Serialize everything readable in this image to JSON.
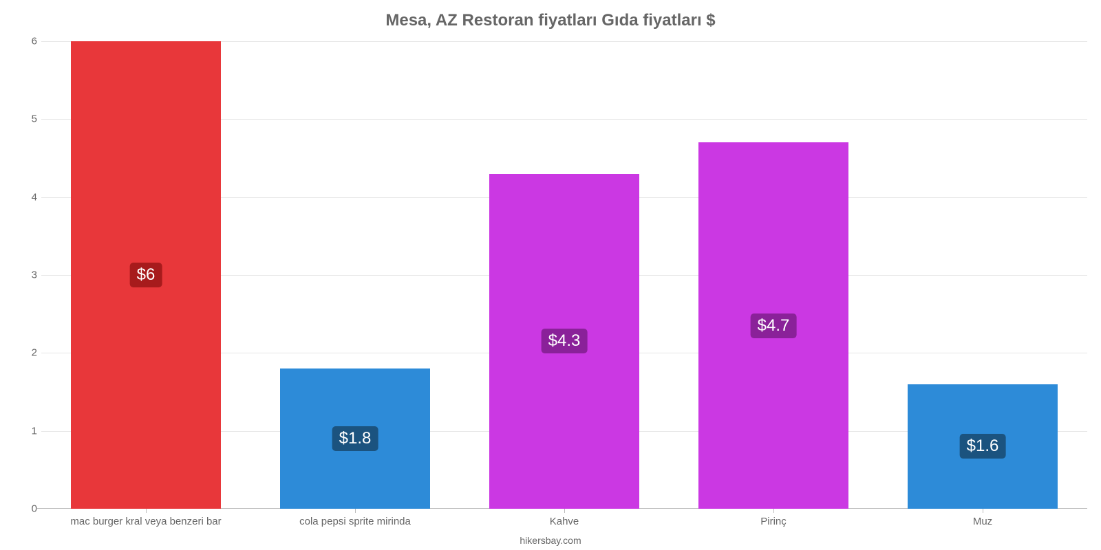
{
  "chart": {
    "type": "bar",
    "title": "Mesa, AZ Restoran fiyatları Gıda fiyatları $",
    "title_fontsize": 24,
    "title_color": "#666666",
    "credit": "hikersbay.com",
    "credit_fontsize": 14,
    "credit_color": "#666666",
    "background_color": "#ffffff",
    "grid_color": "#e6e6e6",
    "axis_color": "#bcbcbc",
    "label_color": "#666666",
    "y": {
      "min": 0,
      "max": 6,
      "ticks": [
        0,
        1,
        2,
        3,
        4,
        5,
        6
      ],
      "fontsize": 15
    },
    "x": {
      "fontsize": 15
    },
    "bar_width_ratio": 0.72,
    "value_label_fontsize": 24,
    "bars": [
      {
        "category": "mac burger kral veya benzeri bar",
        "value": 6.0,
        "display": "$6",
        "color": "#e8373a",
        "pill_bg": "#a71b1c"
      },
      {
        "category": "cola pepsi sprite mirinda",
        "value": 1.8,
        "display": "$1.8",
        "color": "#2d8bd8",
        "pill_bg": "#1b537f"
      },
      {
        "category": "Kahve",
        "value": 4.3,
        "display": "$4.3",
        "color": "#cb38e3",
        "pill_bg": "#8a2199"
      },
      {
        "category": "Pirinç",
        "value": 4.7,
        "display": "$4.7",
        "color": "#cb38e3",
        "pill_bg": "#8a2199"
      },
      {
        "category": "Muz",
        "value": 1.6,
        "display": "$1.6",
        "color": "#2d8bd8",
        "pill_bg": "#1b537f"
      }
    ]
  }
}
